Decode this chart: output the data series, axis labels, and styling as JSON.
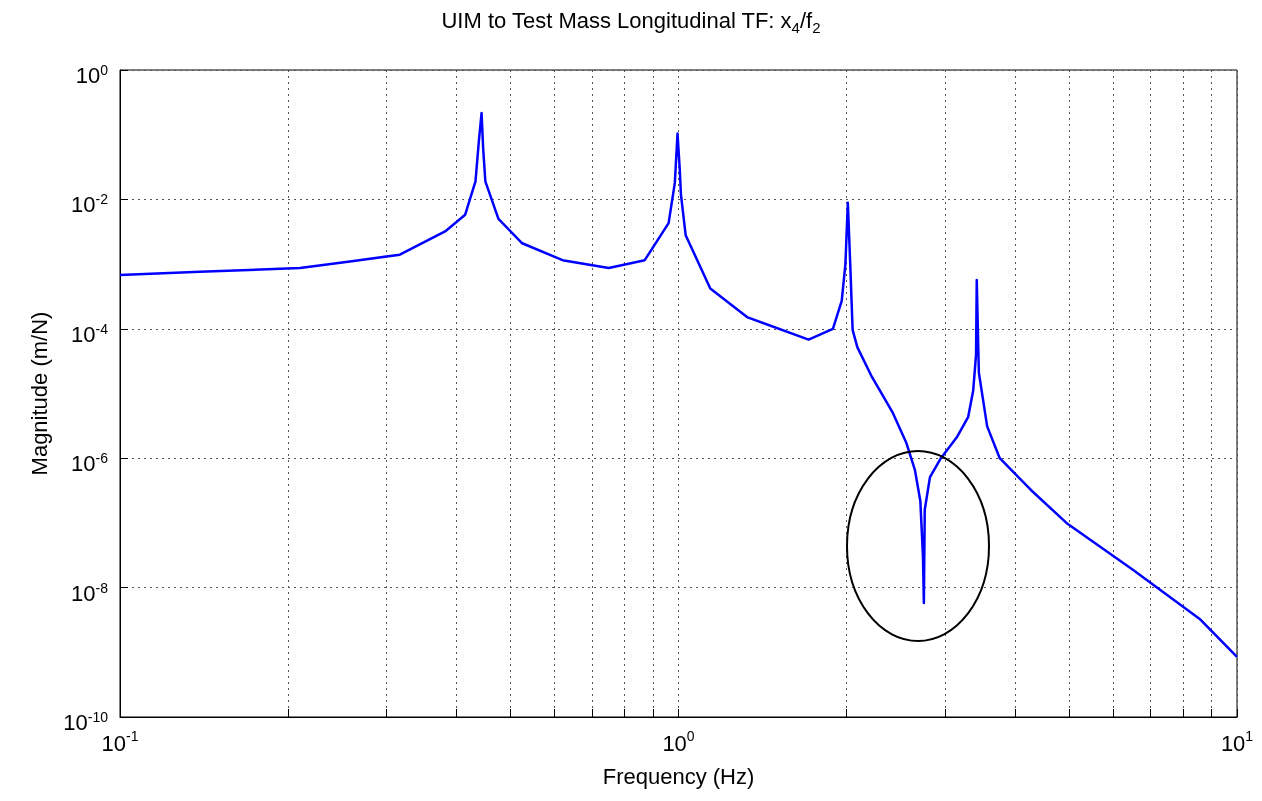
{
  "chart_data": {
    "type": "line",
    "title": "UIM to Test Mass Longitudinal TF: x$_{4}$/f$_{2}$",
    "xlabel": "Frequency (Hz)",
    "ylabel": "Magnitude (m/N)",
    "log": "xy",
    "grid": true,
    "marker": "none",
    "line_style": "solid",
    "xlim": [
      0.1,
      10
    ],
    "ylim": [
      1e-10,
      1
    ],
    "xticks": [
      {
        "value": 0.1,
        "label": "10$^{-1}$"
      },
      {
        "value": 0.2,
        "label": null
      },
      {
        "value": 0.3,
        "label": null
      },
      {
        "value": 0.4,
        "label": null
      },
      {
        "value": 0.5,
        "label": null
      },
      {
        "value": 0.6,
        "label": null
      },
      {
        "value": 0.7,
        "label": null
      },
      {
        "value": 0.8,
        "label": null
      },
      {
        "value": 0.9,
        "label": null
      },
      {
        "value": 1,
        "label": "10$^{0}$"
      },
      {
        "value": 2,
        "label": null
      },
      {
        "value": 3,
        "label": null
      },
      {
        "value": 4,
        "label": null
      },
      {
        "value": 5,
        "label": null
      },
      {
        "value": 6,
        "label": null
      },
      {
        "value": 7,
        "label": null
      },
      {
        "value": 8,
        "label": null
      },
      {
        "value": 9,
        "label": null
      },
      {
        "value": 10,
        "label": "10$^{1}$"
      }
    ],
    "yticks": [
      {
        "value": 1e-10,
        "label": "10$^{-10}$"
      },
      {
        "value": 1e-08,
        "label": "10$^{-8}$"
      },
      {
        "value": 1e-06,
        "label": "10$^{-6}$"
      },
      {
        "value": 0.0001,
        "label": "10$^{-4}$"
      },
      {
        "value": 0.01,
        "label": "10$^{-2}$"
      },
      {
        "value": 1,
        "label": "10$^{0}$"
      }
    ],
    "series": [
      {
        "color": "#0000ff",
        "x": [
          0.1,
          0.139,
          0.21,
          0.258,
          0.317,
          0.382,
          0.415,
          0.433,
          0.439,
          0.444,
          0.447,
          0.451,
          0.476,
          0.525,
          0.62,
          0.75,
          0.87,
          0.96,
          0.985,
          0.996,
          1.005,
          1.01,
          1.03,
          1.14,
          1.33,
          1.71,
          1.89,
          1.96,
          1.99,
          2.01,
          2.03,
          2.05,
          2.09,
          2.22,
          2.42,
          2.56,
          2.65,
          2.71,
          2.74,
          2.75,
          2.76,
          2.82,
          2.95,
          3.15,
          3.3,
          3.37,
          3.41,
          3.42,
          3.44,
          3.45,
          3.57,
          3.76,
          4.28,
          4.95,
          6.5,
          8.6,
          10
        ],
        "values": [
          0.00068,
          0.00076,
          0.00087,
          0.0011,
          0.0014,
          0.0032,
          0.0058,
          0.019,
          0.078,
          0.216,
          0.06,
          0.019,
          0.005,
          0.0021,
          0.00115,
          0.00087,
          0.00115,
          0.0043,
          0.018,
          0.104,
          0.03,
          0.012,
          0.0028,
          0.00042,
          0.00015,
          6.8e-05,
          0.0001,
          0.00027,
          0.001,
          0.0089,
          0.001,
          9.6e-05,
          5.2e-05,
          1.8e-05,
          5e-06,
          1.7e-06,
          6.6e-07,
          2.2e-07,
          3e-08,
          5.8e-09,
          1.6e-07,
          5.1e-07,
          1e-06,
          2.1e-06,
          4.3e-06,
          1.1e-05,
          4e-05,
          0.00057,
          6e-05,
          2.1e-05,
          3.1e-06,
          1e-06,
          3.2e-07,
          1e-07,
          1.9e-08,
          3.2e-09,
          8.5e-10
        ]
      }
    ]
  }
}
